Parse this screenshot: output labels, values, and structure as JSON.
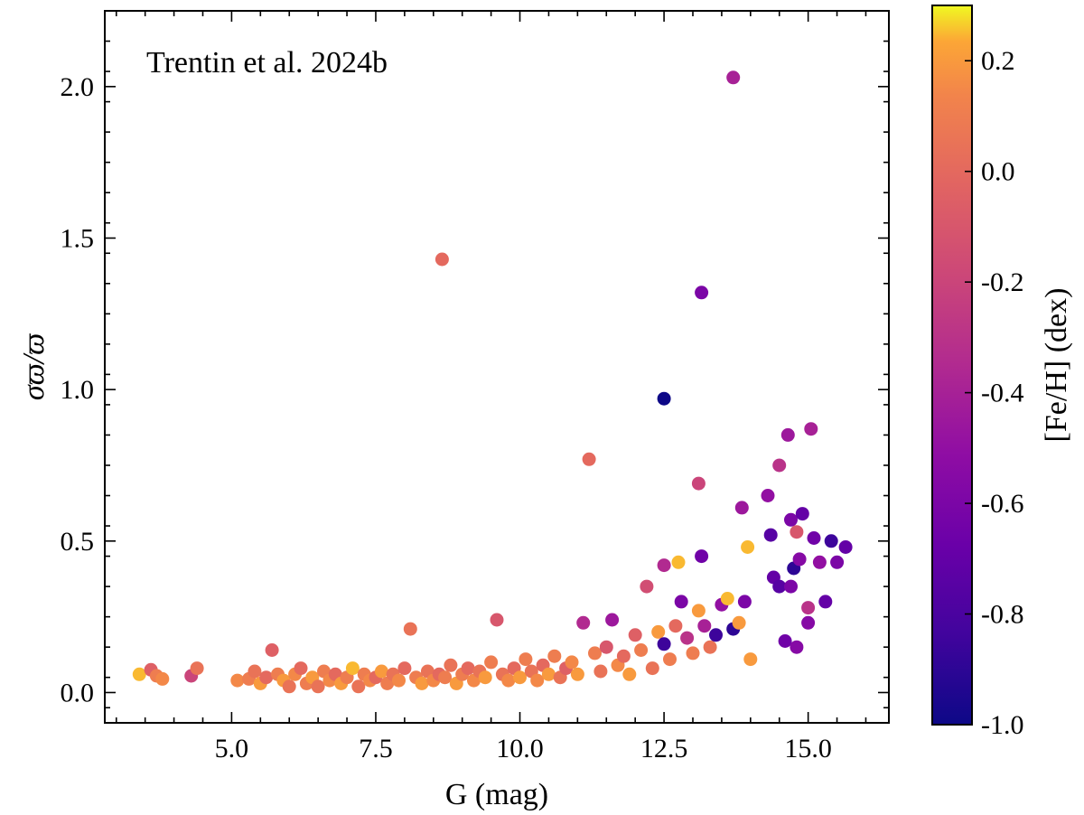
{
  "chart_data": {
    "type": "scatter",
    "annotation": "Trentin et al. 2024b",
    "xlabel": "G (mag)",
    "ylabel": "σϖ/ϖ",
    "xlim": [
      2.8,
      16.4
    ],
    "ylim": [
      -0.1,
      2.25
    ],
    "xticks": [
      5.0,
      7.5,
      10.0,
      12.5,
      15.0
    ],
    "xtick_labels": [
      "5.0",
      "7.5",
      "10.0",
      "12.5",
      "15.0"
    ],
    "yticks": [
      0.0,
      0.5,
      1.0,
      1.5,
      2.0
    ],
    "ytick_labels": [
      "0.0",
      "0.5",
      "1.0",
      "1.5",
      "2.0"
    ],
    "colorbar": {
      "label": "[Fe/H] (dex)",
      "colormap": "plasma",
      "range": [
        -1.0,
        0.3
      ],
      "ticks": [
        0.2,
        0.0,
        -0.2,
        -0.4,
        -0.6,
        -0.8,
        -1.0
      ],
      "tick_labels": [
        "0.2",
        "0.0",
        "-0.2",
        "-0.4",
        "-0.6",
        "-0.8",
        "-1.0"
      ]
    },
    "points": [
      [
        3.4,
        0.06,
        0.25
      ],
      [
        3.6,
        0.075,
        -0.05
      ],
      [
        3.7,
        0.055,
        0.1
      ],
      [
        3.8,
        0.045,
        0.15
      ],
      [
        4.3,
        0.055,
        -0.2
      ],
      [
        4.4,
        0.08,
        0.05
      ],
      [
        5.1,
        0.04,
        0.15
      ],
      [
        5.3,
        0.045,
        0.1
      ],
      [
        5.4,
        0.07,
        0.05
      ],
      [
        5.5,
        0.03,
        0.2
      ],
      [
        5.6,
        0.05,
        0.0
      ],
      [
        5.7,
        0.14,
        -0.05
      ],
      [
        5.8,
        0.06,
        0.1
      ],
      [
        5.9,
        0.04,
        0.2
      ],
      [
        6.0,
        0.02,
        0.05
      ],
      [
        6.1,
        0.06,
        0.15
      ],
      [
        6.2,
        0.08,
        0.0
      ],
      [
        6.3,
        0.03,
        0.1
      ],
      [
        6.4,
        0.05,
        0.2
      ],
      [
        6.5,
        0.02,
        0.05
      ],
      [
        6.6,
        0.07,
        0.1
      ],
      [
        6.7,
        0.04,
        0.15
      ],
      [
        6.8,
        0.06,
        0.0
      ],
      [
        6.9,
        0.03,
        0.2
      ],
      [
        7.0,
        0.05,
        0.1
      ],
      [
        7.1,
        0.08,
        0.25
      ],
      [
        7.2,
        0.02,
        0.05
      ],
      [
        7.3,
        0.06,
        0.1
      ],
      [
        7.4,
        0.04,
        0.15
      ],
      [
        7.5,
        0.05,
        0.0
      ],
      [
        7.6,
        0.07,
        0.2
      ],
      [
        7.7,
        0.03,
        0.1
      ],
      [
        7.8,
        0.06,
        0.05
      ],
      [
        7.9,
        0.04,
        0.15
      ],
      [
        8.0,
        0.08,
        0.0
      ],
      [
        8.1,
        0.21,
        0.05
      ],
      [
        8.2,
        0.05,
        0.1
      ],
      [
        8.3,
        0.03,
        0.2
      ],
      [
        8.4,
        0.07,
        0.05
      ],
      [
        8.5,
        0.04,
        0.15
      ],
      [
        8.6,
        0.06,
        0.0
      ],
      [
        8.65,
        1.43,
        0.0
      ],
      [
        8.7,
        0.05,
        0.1
      ],
      [
        8.8,
        0.09,
        0.05
      ],
      [
        8.9,
        0.03,
        0.2
      ],
      [
        9.0,
        0.06,
        0.1
      ],
      [
        9.1,
        0.08,
        0.0
      ],
      [
        9.2,
        0.04,
        0.15
      ],
      [
        9.3,
        0.07,
        0.05
      ],
      [
        9.4,
        0.05,
        0.2
      ],
      [
        9.5,
        0.1,
        0.1
      ],
      [
        9.6,
        0.24,
        -0.1
      ],
      [
        9.7,
        0.06,
        0.05
      ],
      [
        9.8,
        0.04,
        0.15
      ],
      [
        9.9,
        0.08,
        0.0
      ],
      [
        10.0,
        0.05,
        0.2
      ],
      [
        10.1,
        0.11,
        0.1
      ],
      [
        10.2,
        0.07,
        0.05
      ],
      [
        10.3,
        0.04,
        0.15
      ],
      [
        10.4,
        0.09,
        0.0
      ],
      [
        10.5,
        0.06,
        0.2
      ],
      [
        10.6,
        0.12,
        0.1
      ],
      [
        10.7,
        0.05,
        0.05
      ],
      [
        10.8,
        0.08,
        -0.05
      ],
      [
        10.9,
        0.1,
        0.15
      ],
      [
        11.0,
        0.06,
        0.2
      ],
      [
        11.1,
        0.23,
        -0.35
      ],
      [
        11.2,
        0.77,
        0.0
      ],
      [
        11.3,
        0.13,
        0.1
      ],
      [
        11.4,
        0.07,
        0.05
      ],
      [
        11.5,
        0.15,
        -0.1
      ],
      [
        11.6,
        0.24,
        -0.45
      ],
      [
        11.7,
        0.09,
        0.15
      ],
      [
        11.8,
        0.12,
        0.0
      ],
      [
        11.9,
        0.06,
        0.2
      ],
      [
        12.0,
        0.19,
        -0.05
      ],
      [
        12.1,
        0.14,
        0.1
      ],
      [
        12.2,
        0.35,
        -0.15
      ],
      [
        12.3,
        0.08,
        0.05
      ],
      [
        12.4,
        0.2,
        0.2
      ],
      [
        12.5,
        0.97,
        -1.0
      ],
      [
        12.5,
        0.42,
        -0.35
      ],
      [
        12.5,
        0.16,
        -0.85
      ],
      [
        12.6,
        0.11,
        0.1
      ],
      [
        12.7,
        0.22,
        0.0
      ],
      [
        12.75,
        0.43,
        0.25
      ],
      [
        12.8,
        0.3,
        -0.6
      ],
      [
        12.9,
        0.18,
        -0.3
      ],
      [
        13.0,
        0.13,
        0.1
      ],
      [
        13.1,
        0.27,
        0.2
      ],
      [
        13.1,
        0.69,
        -0.2
      ],
      [
        13.15,
        1.32,
        -0.6
      ],
      [
        13.15,
        0.45,
        -0.65
      ],
      [
        13.2,
        0.22,
        -0.4
      ],
      [
        13.3,
        0.15,
        0.05
      ],
      [
        13.4,
        0.19,
        -0.85
      ],
      [
        13.5,
        0.29,
        -0.5
      ],
      [
        13.6,
        0.31,
        0.25
      ],
      [
        13.7,
        2.03,
        -0.4
      ],
      [
        13.7,
        0.21,
        -0.9
      ],
      [
        13.8,
        0.23,
        0.2
      ],
      [
        13.85,
        0.61,
        -0.45
      ],
      [
        13.9,
        0.3,
        -0.6
      ],
      [
        13.95,
        0.48,
        0.25
      ],
      [
        14.0,
        0.11,
        0.2
      ],
      [
        14.3,
        0.65,
        -0.5
      ],
      [
        14.35,
        0.52,
        -0.75
      ],
      [
        14.4,
        0.38,
        -0.7
      ],
      [
        14.5,
        0.35,
        -0.75
      ],
      [
        14.5,
        0.75,
        -0.3
      ],
      [
        14.6,
        0.17,
        -0.65
      ],
      [
        14.65,
        0.85,
        -0.45
      ],
      [
        14.7,
        0.57,
        -0.6
      ],
      [
        14.75,
        0.41,
        -0.9
      ],
      [
        14.8,
        0.53,
        -0.1
      ],
      [
        14.8,
        0.15,
        -0.55
      ],
      [
        14.85,
        0.44,
        -0.55
      ],
      [
        14.9,
        0.59,
        -0.7
      ],
      [
        15.0,
        0.23,
        -0.55
      ],
      [
        15.05,
        0.87,
        -0.4
      ],
      [
        15.1,
        0.51,
        -0.65
      ],
      [
        15.2,
        0.43,
        -0.5
      ],
      [
        15.3,
        0.3,
        -0.7
      ],
      [
        15.4,
        0.5,
        -0.85
      ],
      [
        15.5,
        0.43,
        -0.6
      ],
      [
        15.65,
        0.48,
        -0.7
      ],
      [
        15.0,
        0.28,
        -0.3
      ],
      [
        14.7,
        0.35,
        -0.6
      ]
    ]
  }
}
